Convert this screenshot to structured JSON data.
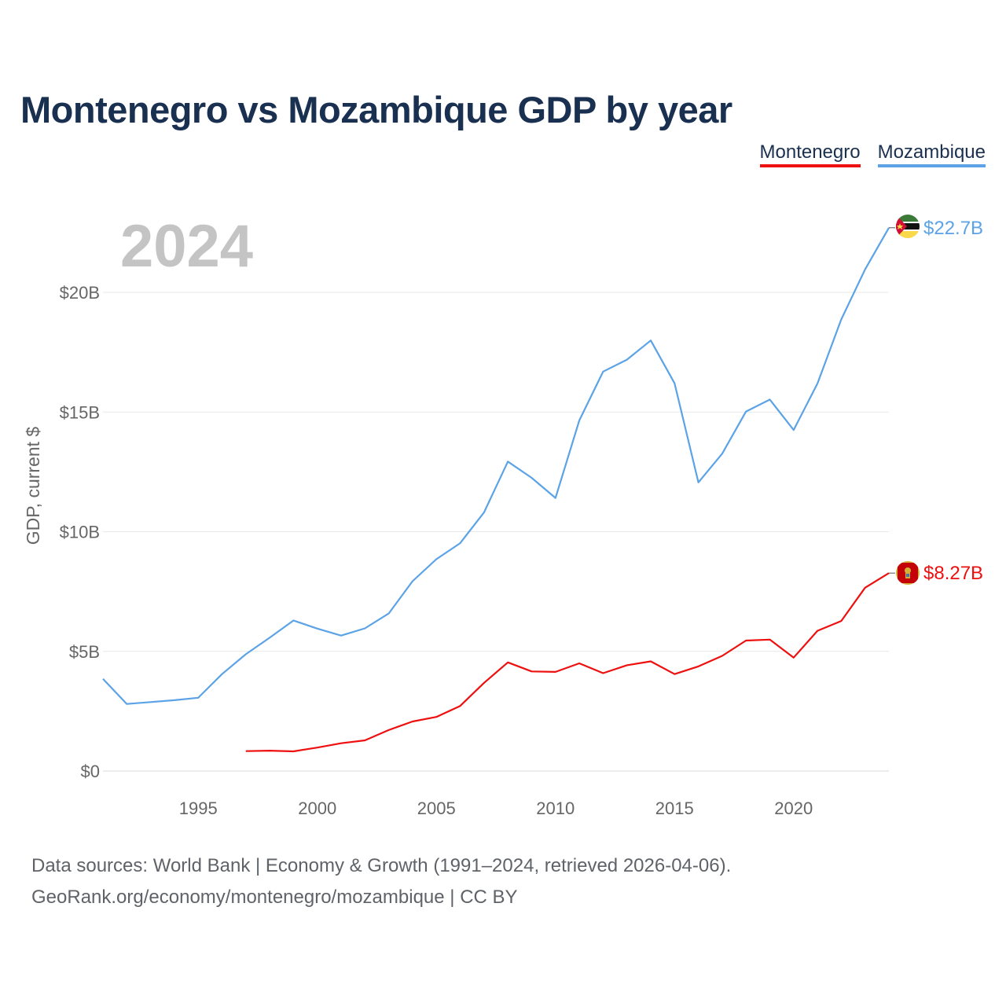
{
  "title": "Montenegro vs Mozambique GDP by year",
  "legend": [
    {
      "name": "Montenegro",
      "color": "#ee0f0f"
    },
    {
      "name": "Mozambique",
      "color": "#5ba3e6"
    }
  ],
  "chart_data": {
    "type": "line",
    "title": "Montenegro vs Mozambique GDP by year",
    "year_label": "2024",
    "ylabel": "GDP, current $",
    "xlabel": "",
    "xlim": [
      1991,
      2024
    ],
    "ylim": [
      0,
      22.7
    ],
    "yticks": [
      0,
      5,
      10,
      15,
      20
    ],
    "ytick_labels": [
      "$0",
      "$5B",
      "$10B",
      "$15B",
      "$20B"
    ],
    "xticks": [
      1995,
      2000,
      2005,
      2010,
      2015,
      2020
    ],
    "xtick_labels": [
      "1995",
      "2000",
      "2005",
      "2010",
      "2015",
      "2020"
    ],
    "grid": true,
    "units": "billions of current US dollars",
    "series": [
      {
        "name": "Mozambique",
        "color": "#5ba3e6",
        "end_label": "$22.7B",
        "flag": "mozambique-flag-icon",
        "x": [
          1991,
          1992,
          1993,
          1994,
          1995,
          1996,
          1997,
          1998,
          1999,
          2000,
          2001,
          2002,
          2003,
          2004,
          2005,
          2006,
          2007,
          2008,
          2009,
          2010,
          2011,
          2012,
          2013,
          2014,
          2015,
          2016,
          2017,
          2018,
          2019,
          2020,
          2021,
          2022,
          2023,
          2024
        ],
        "values": [
          3.85,
          2.8,
          2.88,
          2.96,
          3.06,
          4.05,
          4.88,
          5.57,
          6.29,
          5.95,
          5.66,
          5.96,
          6.58,
          7.93,
          8.85,
          9.52,
          10.8,
          12.93,
          12.25,
          11.41,
          14.65,
          16.69,
          17.19,
          17.99,
          16.2,
          12.06,
          13.26,
          15.02,
          15.52,
          14.25,
          16.19,
          18.87,
          20.96,
          22.7
        ]
      },
      {
        "name": "Montenegro",
        "color": "#ee0f0f",
        "end_label": "$8.27B",
        "flag": "montenegro-flag-icon",
        "x": [
          1997,
          1998,
          1999,
          2000,
          2001,
          2002,
          2003,
          2004,
          2005,
          2006,
          2007,
          2008,
          2009,
          2010,
          2011,
          2012,
          2013,
          2014,
          2015,
          2016,
          2017,
          2018,
          2019,
          2020,
          2021,
          2022,
          2023,
          2024
        ],
        "values": [
          0.83,
          0.85,
          0.82,
          0.98,
          1.16,
          1.28,
          1.71,
          2.07,
          2.26,
          2.72,
          3.68,
          4.54,
          4.16,
          4.14,
          4.5,
          4.09,
          4.42,
          4.58,
          4.05,
          4.37,
          4.81,
          5.45,
          5.49,
          4.74,
          5.86,
          6.27,
          7.66,
          8.27
        ]
      }
    ]
  },
  "sources": {
    "line1": "Data sources: World Bank | Economy & Growth (1991–2024, retrieved 2026-04-06).",
    "line2": "GeoRank.org/economy/montenegro/mozambique | CC BY"
  }
}
